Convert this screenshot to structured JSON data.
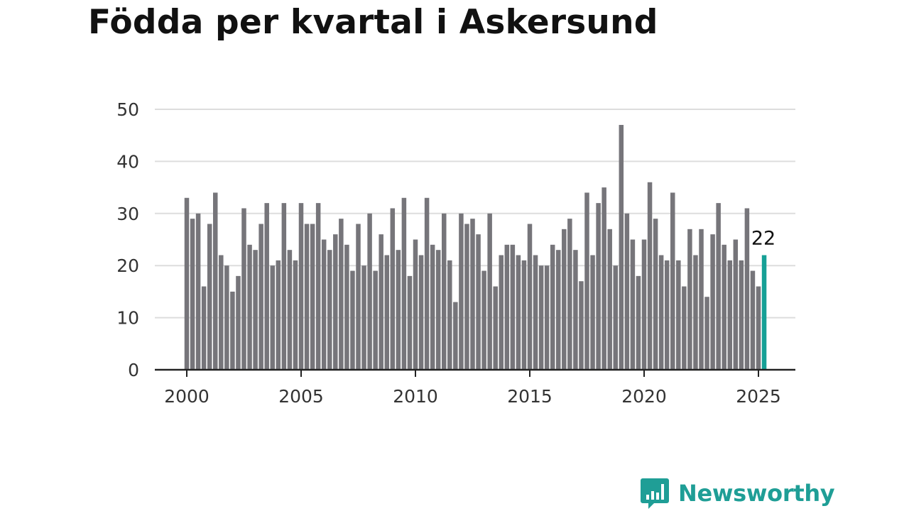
{
  "title": "Födda per kvartal i Askersund",
  "brand": {
    "name": "Newsworthy",
    "icon": "bar-chart-speech-icon",
    "color": "#1f9e96"
  },
  "colors": {
    "bar": "#76757a",
    "highlight": "#16a096",
    "grid": "#dddddd",
    "axis": "#222222"
  },
  "chart_data": {
    "type": "bar",
    "title": "Födda per kvartal i Askersund",
    "xlabel": "",
    "ylabel": "",
    "x_start": "2000 Q1",
    "x_ticks": [
      2000,
      2005,
      2010,
      2015,
      2020,
      2025
    ],
    "y_ticks": [
      0,
      10,
      20,
      30,
      40,
      50
    ],
    "ylim": [
      0,
      50
    ],
    "grid": true,
    "highlight_last": true,
    "last_label": "22",
    "values": [
      33,
      29,
      30,
      16,
      28,
      34,
      22,
      20,
      15,
      18,
      31,
      24,
      23,
      28,
      32,
      20,
      21,
      32,
      23,
      21,
      32,
      28,
      28,
      32,
      25,
      23,
      26,
      29,
      24,
      19,
      28,
      20,
      30,
      19,
      26,
      22,
      31,
      23,
      33,
      18,
      25,
      22,
      33,
      24,
      23,
      30,
      21,
      13,
      30,
      28,
      29,
      26,
      19,
      30,
      16,
      22,
      24,
      24,
      22,
      21,
      28,
      22,
      20,
      20,
      24,
      23,
      27,
      29,
      23,
      17,
      34,
      22,
      32,
      35,
      27,
      20,
      47,
      30,
      25,
      18,
      25,
      36,
      29,
      22,
      21,
      34,
      21,
      16,
      27,
      22,
      27,
      14,
      26,
      32,
      24,
      21,
      25,
      21,
      31,
      19,
      16,
      22
    ]
  }
}
